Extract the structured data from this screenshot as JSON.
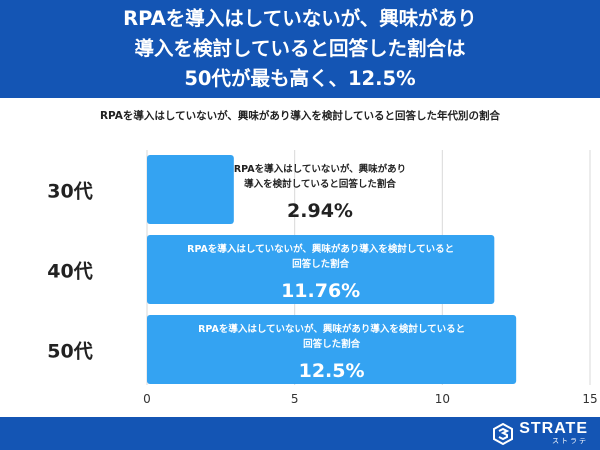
{
  "header": {
    "line1": "RPAを導入はしていないが、興味があり",
    "line2": "導入を検討していると回答した割合は",
    "line3": "50代が最も高く、12.5%"
  },
  "subtitle": "RPAを導入はしていないが、興味があり導入を検討していると回答した年代別の割合",
  "chart_data": {
    "type": "bar",
    "orientation": "horizontal",
    "title": "RPAを導入はしていないが、興味があり導入を検討していると回答した年代別の割合",
    "categories": [
      "30代",
      "40代",
      "50代"
    ],
    "values": [
      2.94,
      11.76,
      12.5
    ],
    "value_labels": [
      "2.94%",
      "11.76%",
      "12.5%"
    ],
    "bar_labels": [
      [
        "RPAを導入はしていないが、興味があり",
        "導入を検討していると回答した割合"
      ],
      [
        "RPAを導入はしていないが、興味があり導入を検討していると",
        "回答した割合"
      ],
      [
        "RPAを導入はしていないが、興味があり導入を検討していると",
        "回答した割合"
      ]
    ],
    "xlim": [
      0,
      15
    ],
    "xticks": [
      0,
      5,
      10,
      15
    ],
    "grid": true,
    "bar_color": "#34a3f2"
  },
  "footer": {
    "logo_text": "STRATE",
    "logo_sub": "ストラテ"
  }
}
